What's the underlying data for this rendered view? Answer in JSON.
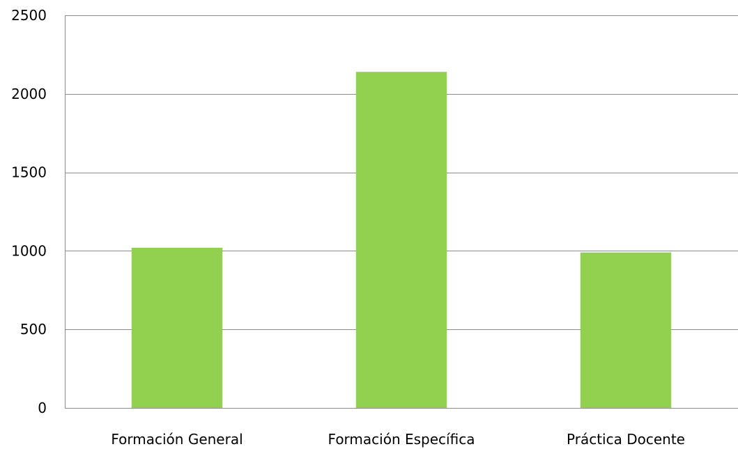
{
  "chart_data": {
    "type": "bar",
    "categories": [
      "Formación General",
      "Formación Específica",
      "Práctica Docente"
    ],
    "values": [
      1020,
      2140,
      990
    ],
    "ylim": [
      0,
      2500
    ],
    "yticks": [
      0,
      500,
      1000,
      1500,
      2000,
      2500
    ],
    "grid": true,
    "legend": "none",
    "bar_color": "#92d050",
    "grid_color": "#8c8c8c"
  }
}
